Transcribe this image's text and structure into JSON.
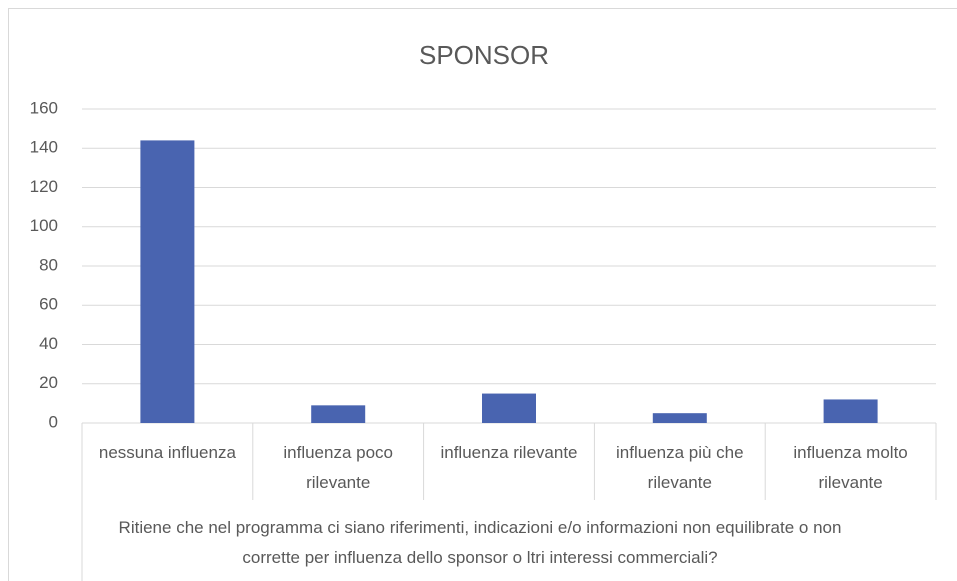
{
  "chart_data": {
    "type": "bar",
    "title": "SPONSOR",
    "categories": [
      "nessuna influenza",
      "influenza poco rilevante",
      "influenza rilevante",
      "influenza più che rilevante",
      "influenza molto rilevante"
    ],
    "values": [
      144,
      9,
      15,
      5,
      12
    ],
    "color": "#4964b0",
    "x_label": "Ritiene che nel programma ci siano riferimenti, indicazioni e/o informazioni non equilibrate o non corrette per influenza dello sponsor o ltri interessi commerciali?",
    "ylim": [
      0,
      160
    ],
    "yticks": [
      0,
      20,
      40,
      60,
      80,
      100,
      120,
      140,
      160
    ],
    "grid": true
  }
}
